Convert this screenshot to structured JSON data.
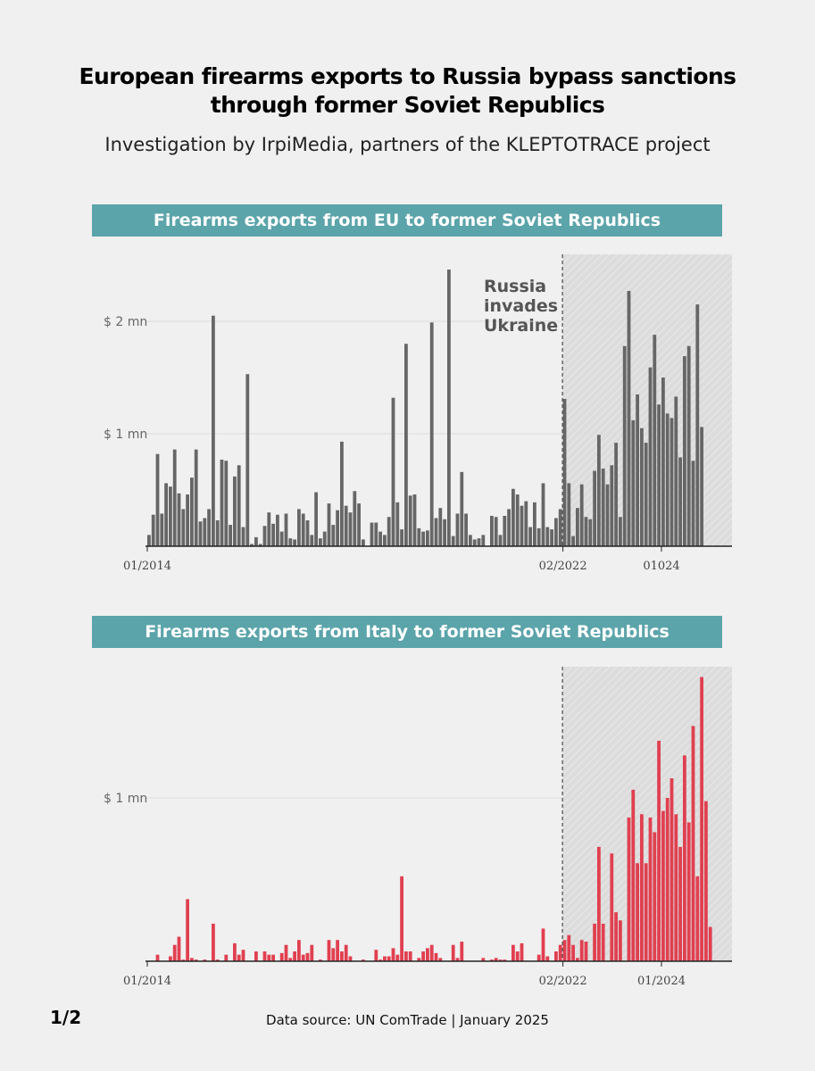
{
  "header": {
    "title_line1": "European firearms exports to Russia bypass sanctions",
    "title_line2": "through former Soviet Republics",
    "subtitle": "Investigation by IrpiMedia, partners of the KLEPTOTRACE project"
  },
  "colors": {
    "banner": "#5ba4aa",
    "eu_bars": "#666666",
    "italy_bars": "#e04050",
    "shade": "#dcdcdc",
    "background": "#f0f0f0"
  },
  "chart_data": [
    {
      "type": "bar",
      "title": "Firearms exports from EU to former Soviet Republics",
      "unit": "$ mn",
      "x_start": "2014-01",
      "x_ticks": [
        {
          "label": "01/2014",
          "index": 0
        },
        {
          "label": "02/2022",
          "index": 97
        },
        {
          "label": "01024",
          "index": 120
        }
      ],
      "y_ticks": [
        {
          "label": "$ 2 mn",
          "value": 2
        },
        {
          "label": "$ 1 mn",
          "value": 1
        }
      ],
      "ylim": [
        0,
        2.6
      ],
      "event": {
        "index": 97,
        "label_lines": [
          "Russia",
          "invades",
          "Ukraine"
        ]
      },
      "shaded_from_index": 97,
      "values": [
        0.1,
        0.28,
        0.82,
        0.29,
        0.56,
        0.53,
        0.86,
        0.47,
        0.33,
        0.46,
        0.61,
        0.86,
        0.22,
        0.25,
        0.33,
        2.05,
        0.23,
        0.77,
        0.76,
        0.19,
        0.62,
        0.72,
        0.17,
        1.53,
        0.02,
        0.08,
        0.02,
        0.18,
        0.3,
        0.2,
        0.28,
        0.13,
        0.29,
        0.07,
        0.06,
        0.33,
        0.29,
        0.23,
        0.1,
        0.48,
        0.07,
        0.13,
        0.38,
        0.19,
        0.32,
        0.93,
        0.36,
        0.3,
        0.49,
        0.38,
        0.06,
        0.0,
        0.21,
        0.21,
        0.13,
        0.1,
        0.26,
        1.32,
        0.39,
        0.15,
        1.8,
        0.45,
        0.46,
        0.16,
        0.13,
        0.14,
        1.99,
        0.25,
        0.34,
        0.24,
        2.46,
        0.09,
        0.29,
        0.66,
        0.29,
        0.1,
        0.06,
        0.07,
        0.1,
        0.0,
        0.27,
        0.26,
        0.1,
        0.27,
        0.33,
        0.51,
        0.46,
        0.36,
        0.4,
        0.17,
        0.39,
        0.16,
        0.56,
        0.17,
        0.15,
        0.25,
        0.33,
        1.31,
        0.56,
        0.09,
        0.34,
        0.55,
        0.26,
        0.24,
        0.67,
        0.99,
        0.69,
        0.55,
        0.72,
        0.92,
        0.26,
        1.78,
        2.27,
        1.12,
        1.35,
        1.05,
        0.92,
        1.59,
        1.88,
        1.26,
        1.5,
        1.18,
        1.14,
        1.33,
        0.79,
        1.69,
        1.78,
        0.76,
        2.15,
        1.06
      ]
    },
    {
      "type": "bar",
      "title": "Firearms exports from Italy to former Soviet Republics",
      "unit": "$ mn",
      "x_start": "2014-01",
      "x_ticks": [
        {
          "label": "01/2014",
          "index": 0
        },
        {
          "label": "02/2022",
          "index": 97
        },
        {
          "label": "01/2024",
          "index": 120
        }
      ],
      "y_ticks": [
        {
          "label": "$ 1 mn",
          "value": 1
        }
      ],
      "ylim": [
        0,
        1.75
      ],
      "event": {
        "index": 97
      },
      "shaded_from_index": 97,
      "values": [
        0.0,
        0.0,
        0.04,
        0.0,
        0.0,
        0.03,
        0.1,
        0.15,
        0.01,
        0.38,
        0.02,
        0.01,
        0.0,
        0.01,
        0.0,
        0.23,
        0.01,
        0.0,
        0.04,
        0.0,
        0.11,
        0.04,
        0.07,
        0.0,
        0.0,
        0.06,
        0.0,
        0.06,
        0.04,
        0.04,
        0.0,
        0.05,
        0.1,
        0.02,
        0.06,
        0.13,
        0.04,
        0.05,
        0.1,
        0.0,
        0.01,
        0.0,
        0.13,
        0.08,
        0.13,
        0.06,
        0.1,
        0.03,
        0.0,
        0.0,
        0.01,
        0.0,
        0.0,
        0.07,
        0.01,
        0.03,
        0.03,
        0.08,
        0.04,
        0.52,
        0.06,
        0.06,
        0.0,
        0.02,
        0.06,
        0.08,
        0.1,
        0.05,
        0.02,
        0.0,
        0.0,
        0.1,
        0.02,
        0.12,
        0.0,
        0.0,
        0.0,
        0.0,
        0.02,
        0.0,
        0.01,
        0.02,
        0.01,
        0.01,
        0.0,
        0.1,
        0.06,
        0.11,
        0.0,
        0.0,
        0.0,
        0.04,
        0.2,
        0.03,
        0.0,
        0.06,
        0.1,
        0.13,
        0.16,
        0.1,
        0.02,
        0.13,
        0.12,
        0.0,
        0.23,
        0.7,
        0.23,
        0.0,
        0.66,
        0.3,
        0.25,
        0.0,
        0.88,
        1.05,
        0.6,
        0.9,
        0.6,
        0.88,
        0.79,
        1.35,
        0.92,
        1.0,
        1.12,
        0.9,
        0.7,
        1.26,
        0.85,
        1.44,
        0.52,
        1.74,
        0.98,
        0.21
      ]
    }
  ],
  "footer": {
    "page_indicator": "1/2",
    "source": "Data source: UN ComTrade | January 2025"
  }
}
